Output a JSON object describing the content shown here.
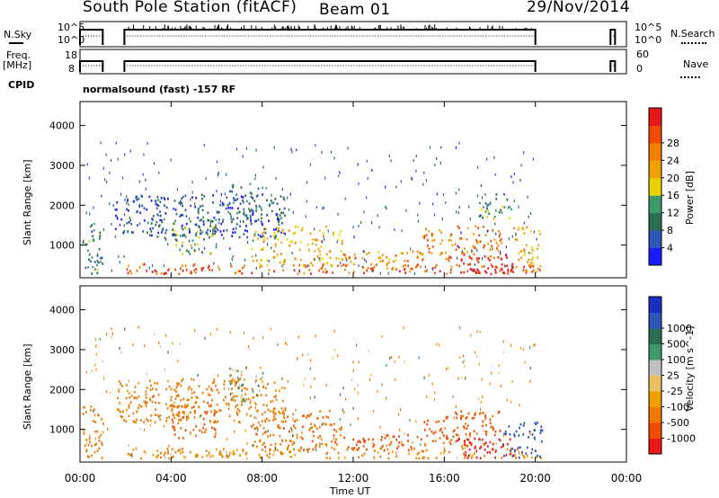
{
  "header": {
    "station_title": "South Pole Station (fitACF)",
    "beam": "Beam 01",
    "date": "29/Nov/2014"
  },
  "strip_labels": {
    "nsky": "N.Sky",
    "nsky_ticks": [
      "10^5",
      "10^0"
    ],
    "freq": "Freq.",
    "freq_unit": "[MHz]",
    "freq_ticks": [
      "18",
      "8"
    ],
    "nsearch": "N.Search",
    "nsearch_ticks": [
      "10^5",
      "10^0"
    ],
    "nave": "Nave",
    "nave_ticks": [
      "60",
      "0"
    ],
    "cpid": "CPID",
    "program": "normalsound (fast) -157 RF"
  },
  "colors": {
    "power_scale": [
      "#1a1aff",
      "#2f55b8",
      "#2c6e52",
      "#3f9a6a",
      "#e8d400",
      "#f0a000",
      "#f08000",
      "#f04a00",
      "#e81818"
    ],
    "velocity_scale": [
      "#e81818",
      "#f04a00",
      "#f07800",
      "#f0a000",
      "#e8c060",
      "#c0c0c0",
      "#3f9a6a",
      "#2c6e52",
      "#2f55b8",
      "#1a30c0"
    ]
  },
  "chart_data": [
    {
      "type": "heatmap",
      "title": "",
      "quantity": "Power",
      "xlabel": "Time UT",
      "ylabel": "Slant Range [km]",
      "x_ticks": [
        "00:00",
        "04:00",
        "08:00",
        "12:00",
        "16:00",
        "20:00",
        "00:00"
      ],
      "y_ticks": [
        "1000",
        "2000",
        "3000",
        "4000"
      ],
      "xlim_hours": [
        0,
        24
      ],
      "ylim_km": [
        180,
        4600
      ],
      "colorbar_label": "Power [dB]",
      "colorbar_ticks": [
        "4",
        "8",
        "12",
        "16",
        "20",
        "24",
        "28"
      ],
      "colorbar_range": [
        0,
        30
      ],
      "regions": [
        {
          "t": [
            0.1,
            1.0
          ],
          "r": [
            300,
            1600
          ],
          "value": 9
        },
        {
          "t": [
            2.0,
            20.3
          ],
          "r": [
            300,
            550
          ],
          "value": 24
        },
        {
          "t": [
            3.2,
            6.0
          ],
          "r": [
            300,
            450
          ],
          "value": 28
        },
        {
          "t": [
            4.0,
            6.0
          ],
          "r": [
            800,
            1700
          ],
          "value": 12
        },
        {
          "t": [
            7.5,
            11.5
          ],
          "r": [
            500,
            1500
          ],
          "value": 18
        },
        {
          "t": [
            11.5,
            15.0
          ],
          "r": [
            500,
            900
          ],
          "value": 20
        },
        {
          "t": [
            15.0,
            18.5
          ],
          "r": [
            600,
            1500
          ],
          "value": 22
        },
        {
          "t": [
            16.5,
            19.0
          ],
          "r": [
            300,
            800
          ],
          "value": 29
        },
        {
          "t": [
            19.0,
            20.3
          ],
          "r": [
            400,
            1500
          ],
          "value": 18
        },
        {
          "t": [
            6.5,
            8.0
          ],
          "r": [
            1700,
            2600
          ],
          "value": 8
        },
        {
          "t": [
            1.5,
            9.0
          ],
          "r": [
            1200,
            2300
          ],
          "value": 6
        },
        {
          "t": [
            17.5,
            19.0
          ],
          "r": [
            1600,
            2300
          ],
          "value": 10
        }
      ]
    },
    {
      "type": "heatmap",
      "title": "",
      "quantity": "Velocity",
      "xlabel": "Time UT",
      "ylabel": "Slant Range [km]",
      "x_ticks": [
        "00:00",
        "04:00",
        "08:00",
        "12:00",
        "16:00",
        "20:00",
        "00:00"
      ],
      "y_ticks": [
        "1000",
        "2000",
        "3000",
        "4000"
      ],
      "xlim_hours": [
        0,
        24
      ],
      "ylim_km": [
        180,
        4600
      ],
      "colorbar_label": "Velocity [m s^-1]",
      "colorbar_ticks": [
        "1000",
        "500",
        "100",
        "25",
        "-25",
        "-100",
        "-500",
        "-1000"
      ],
      "colorbar_range": [
        -1200,
        1200
      ],
      "regions": [
        {
          "t": [
            0.1,
            1.0
          ],
          "r": [
            300,
            1600
          ],
          "value": -200
        },
        {
          "t": [
            2.0,
            20.3
          ],
          "r": [
            300,
            550
          ],
          "value": -150
        },
        {
          "t": [
            2.5,
            6.5
          ],
          "r": [
            300,
            450
          ],
          "value": -80
        },
        {
          "t": [
            4.0,
            6.0
          ],
          "r": [
            800,
            1700
          ],
          "value": -300
        },
        {
          "t": [
            7.5,
            11.5
          ],
          "r": [
            500,
            1500
          ],
          "value": -250
        },
        {
          "t": [
            11.5,
            15.0
          ],
          "r": [
            500,
            900
          ],
          "value": -600
        },
        {
          "t": [
            15.0,
            18.5
          ],
          "r": [
            600,
            1500
          ],
          "value": -350
        },
        {
          "t": [
            16.5,
            19.0
          ],
          "r": [
            300,
            800
          ],
          "value": -900
        },
        {
          "t": [
            18.5,
            20.3
          ],
          "r": [
            300,
            1200
          ],
          "value": 200
        },
        {
          "t": [
            6.5,
            8.0
          ],
          "r": [
            1700,
            2600
          ],
          "value": 0
        },
        {
          "t": [
            1.5,
            9.0
          ],
          "r": [
            1200,
            2300
          ],
          "value": -200
        }
      ]
    }
  ]
}
